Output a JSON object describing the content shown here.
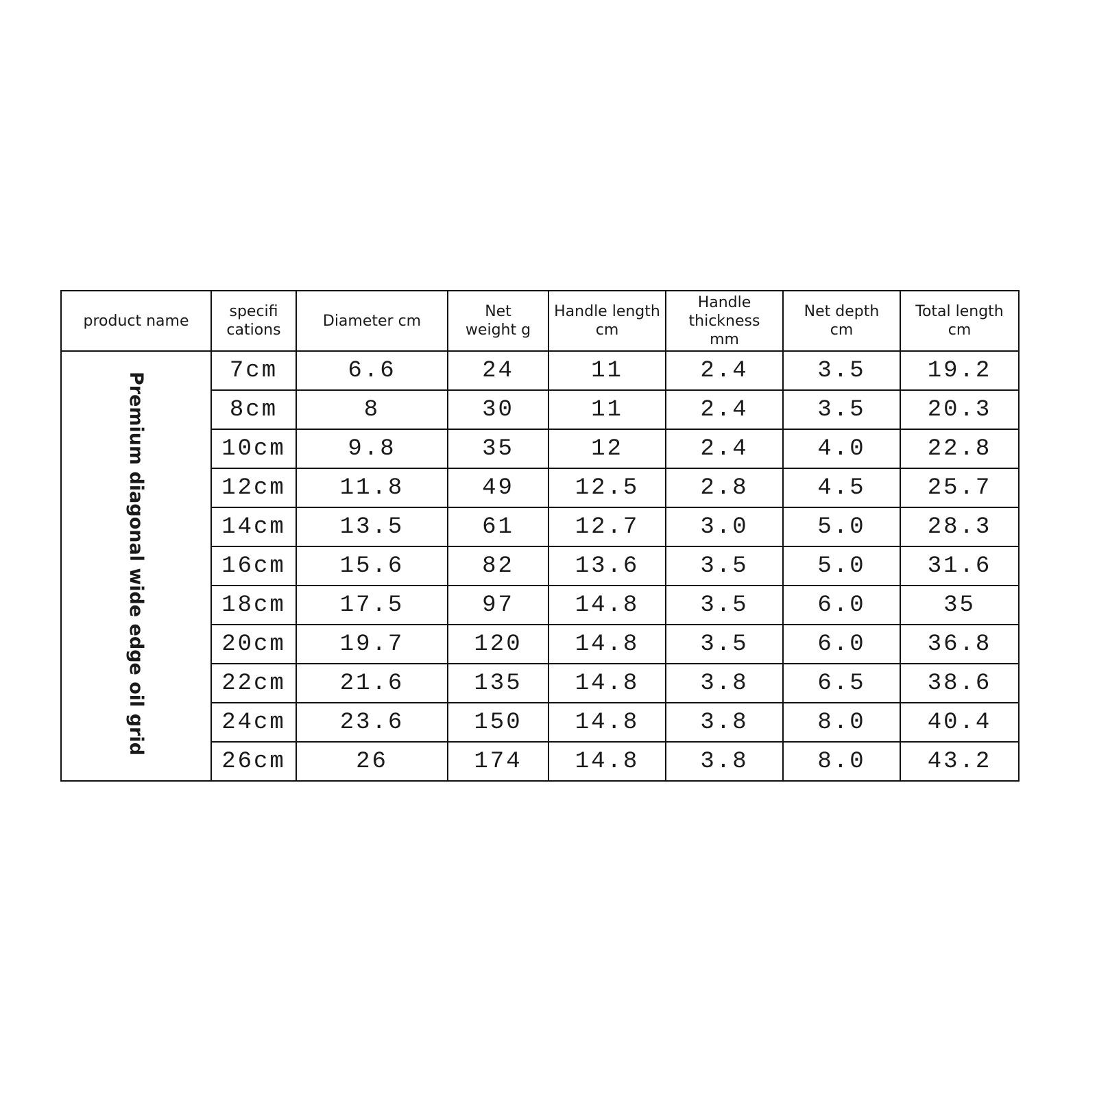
{
  "table": {
    "headers": [
      "product name",
      "specifi\ncations",
      "Diameter cm",
      "Net\nweight g",
      "Handle length\ncm",
      "Handle\nthickness\nmm",
      "Net depth\ncm",
      "Total length\ncm"
    ],
    "product_name": "Premium diagonal wide edge oil grid",
    "rows": [
      [
        "7cm",
        "6.6",
        "24",
        "11",
        "2.4",
        "3.5",
        "19.2"
      ],
      [
        "8cm",
        "8",
        "30",
        "11",
        "2.4",
        "3.5",
        "20.3"
      ],
      [
        "10cm",
        "9.8",
        "35",
        "12",
        "2.4",
        "4.0",
        "22.8"
      ],
      [
        "12cm",
        "11.8",
        "49",
        "12.5",
        "2.8",
        "4.5",
        "25.7"
      ],
      [
        "14cm",
        "13.5",
        "61",
        "12.7",
        "3.0",
        "5.0",
        "28.3"
      ],
      [
        "16cm",
        "15.6",
        "82",
        "13.6",
        "3.5",
        "5.0",
        "31.6"
      ],
      [
        "18cm",
        "17.5",
        "97",
        "14.8",
        "3.5",
        "6.0",
        "35"
      ],
      [
        "20cm",
        "19.7",
        "120",
        "14.8",
        "3.5",
        "6.0",
        "36.8"
      ],
      [
        "22cm",
        "21.6",
        "135",
        "14.8",
        "3.8",
        "6.5",
        "38.6"
      ],
      [
        "24cm",
        "23.6",
        "150",
        "14.8",
        "3.8",
        "8.0",
        "40.4"
      ],
      [
        "26cm",
        "26",
        "174",
        "14.8",
        "3.8",
        "8.0",
        "43.2"
      ]
    ]
  }
}
